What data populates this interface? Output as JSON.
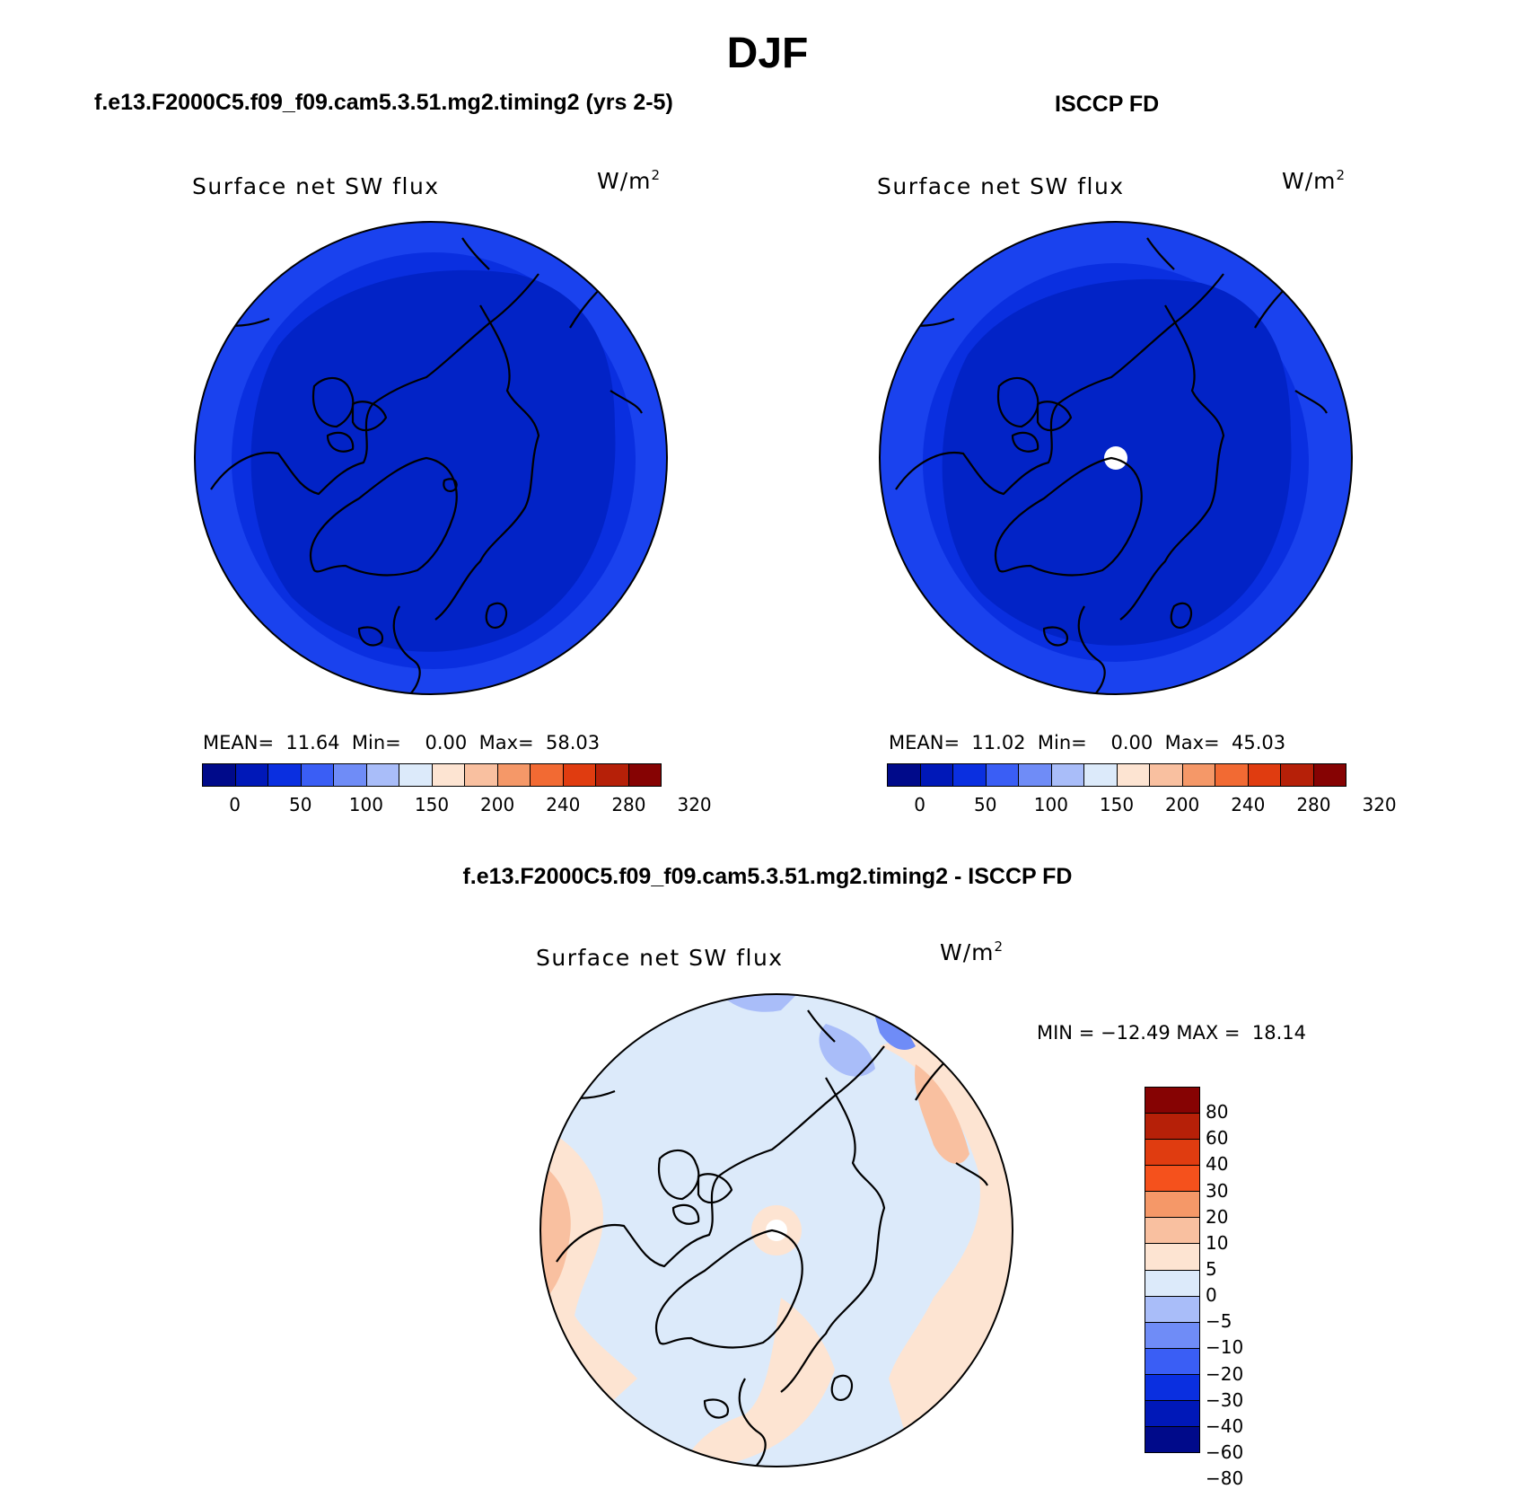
{
  "title": "DJF",
  "panels": {
    "model": {
      "case_title": "f.e13.F2000C5.f09_f09.cam5.3.51.mg2.timing2 (yrs 2-5)",
      "variable": "Surface net SW flux",
      "units": "W/m",
      "units_exp": "2",
      "mean_label": "MEAN=",
      "mean": "11.64",
      "min_label": "Min=",
      "min": "0.00",
      "max_label": "Max=",
      "max": "58.03"
    },
    "obs": {
      "case_title": "ISCCP FD",
      "variable": "Surface net SW flux",
      "units": "W/m",
      "units_exp": "2",
      "mean_label": "MEAN=",
      "mean": "11.02",
      "min_label": "Min=",
      "min": "0.00",
      "max_label": "Max=",
      "max": "45.03"
    },
    "diff": {
      "case_title": "f.e13.F2000C5.f09_f09.cam5.3.51.mg2.timing2 - ISCCP FD",
      "variable": "Surface net SW flux",
      "units": "W/m",
      "units_exp": "2",
      "min_label": "MIN =",
      "min": "−12.49",
      "max_label": "MAX =",
      "max": "18.14"
    }
  },
  "colorbars": {
    "abs": {
      "colors": [
        "#000a8a",
        "#0018b8",
        "#0a2fe0",
        "#3a5ef5",
        "#6f8cf7",
        "#a9bdf9",
        "#dceafa",
        "#fde4d2",
        "#f9c0a0",
        "#f59868",
        "#f26a33",
        "#e03c10",
        "#b62008",
        "#860303"
      ],
      "tick_labels": [
        "0",
        "50",
        "100",
        "150",
        "200",
        "240",
        "280",
        "320"
      ]
    },
    "diff": {
      "colors": [
        "#860303",
        "#b62008",
        "#e03c10",
        "#f5511c",
        "#f59868",
        "#f9c0a0",
        "#fde4d2",
        "#dceafa",
        "#a9bdf9",
        "#6f8cf7",
        "#3a5ef5",
        "#0a2fe0",
        "#0018b8",
        "#000a8a"
      ],
      "tick_labels": [
        "80",
        "60",
        "40",
        "30",
        "20",
        "10",
        "5",
        "0",
        "−5",
        "−10",
        "−20",
        "−30",
        "−40",
        "−60",
        "−80"
      ]
    }
  },
  "map_colors": {
    "abs_base": "#0a2fe0",
    "abs_outer": "#1a42ee",
    "abs_inner": "#0223c6",
    "diff_base": "#dceafa",
    "diff_pos5": "#fde4d2",
    "diff_pos10": "#f9c0a0",
    "diff_neg5": "#a9bdf9",
    "diff_neg10": "#6f8cf7"
  }
}
